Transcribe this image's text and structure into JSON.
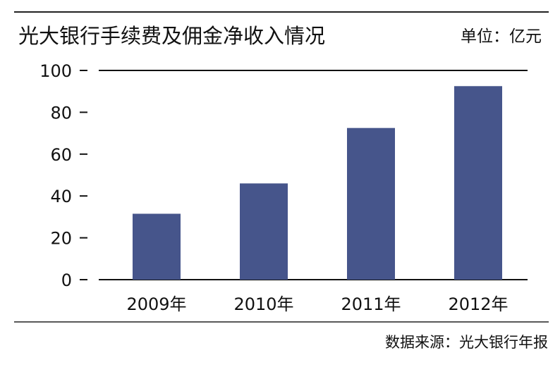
{
  "chart_data": {
    "type": "bar",
    "title": "光大银行手续费及佣金净收入情况",
    "unit": "单位：亿元",
    "categories": [
      "2009年",
      "2010年",
      "2011年",
      "2012年"
    ],
    "values": [
      31.5,
      46,
      72.5,
      92.5
    ],
    "ylim": [
      0,
      100
    ],
    "yticks": [
      0,
      20,
      40,
      60,
      80,
      100
    ],
    "xlabel": "",
    "ylabel": "",
    "grid": false,
    "bar_color": "#46558b",
    "source": "数据来源：光大银行年报"
  }
}
